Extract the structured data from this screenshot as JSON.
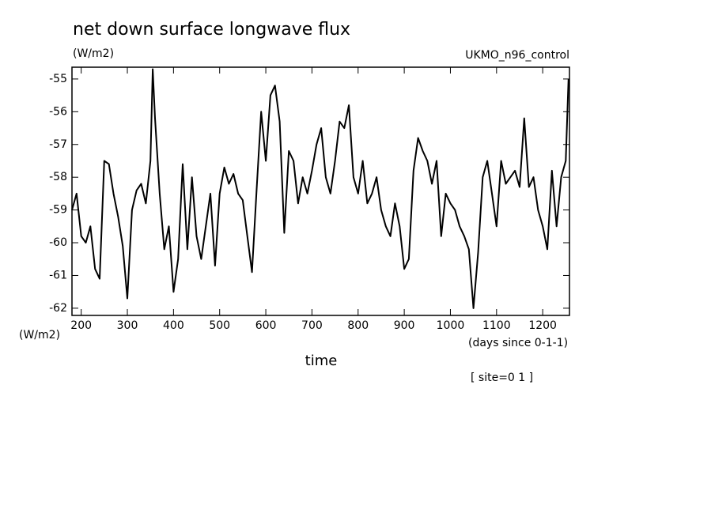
{
  "chart_data": {
    "type": "line",
    "title": "net down surface longwave flux",
    "y_units": "(W/m2)",
    "source": "UKMO_n96_control",
    "y_axis_label": "(W/m2)",
    "x_units": "(days since 0-1-1)",
    "x_axis_label": "time",
    "site": "[ site=0 1 ]",
    "xlim": [
      180,
      1258
    ],
    "ylim": [
      -54.64,
      -62.22
    ],
    "xticks": [
      200,
      300,
      400,
      500,
      600,
      700,
      800,
      900,
      1000,
      1100,
      1200
    ],
    "yticks": [
      -55,
      -56,
      -57,
      -58,
      -59,
      -60,
      -61,
      -62
    ],
    "x": [
      180,
      190,
      200,
      210,
      220,
      230,
      240,
      250,
      260,
      270,
      280,
      290,
      300,
      310,
      320,
      330,
      340,
      350,
      355,
      360,
      370,
      380,
      390,
      400,
      410,
      420,
      430,
      440,
      450,
      460,
      470,
      480,
      490,
      500,
      510,
      520,
      530,
      540,
      550,
      560,
      570,
      580,
      590,
      600,
      610,
      620,
      630,
      640,
      650,
      660,
      670,
      680,
      690,
      700,
      710,
      720,
      730,
      740,
      750,
      760,
      770,
      780,
      790,
      800,
      810,
      820,
      830,
      840,
      850,
      860,
      870,
      880,
      890,
      900,
      910,
      920,
      930,
      940,
      950,
      960,
      970,
      980,
      990,
      1000,
      1010,
      1020,
      1030,
      1040,
      1050,
      1060,
      1070,
      1080,
      1090,
      1100,
      1110,
      1120,
      1130,
      1140,
      1150,
      1160,
      1170,
      1180,
      1190,
      1200,
      1210,
      1220,
      1230,
      1240,
      1250,
      1256
    ],
    "series": [
      {
        "color": "#000000",
        "values": [
          -59.0,
          -58.5,
          -59.8,
          -60.0,
          -59.5,
          -60.8,
          -61.1,
          -57.5,
          -57.6,
          -58.5,
          -59.2,
          -60.1,
          -61.7,
          -59.0,
          -58.4,
          -58.2,
          -58.8,
          -57.5,
          -54.7,
          -56.2,
          -58.5,
          -60.2,
          -59.5,
          -61.5,
          -60.5,
          -57.6,
          -60.2,
          -58.0,
          -59.8,
          -60.5,
          -59.5,
          -58.5,
          -60.7,
          -58.5,
          -57.7,
          -58.2,
          -57.9,
          -58.5,
          -58.7,
          -59.8,
          -60.9,
          -58.4,
          -56.0,
          -57.5,
          -55.5,
          -55.2,
          -56.3,
          -59.7,
          -57.2,
          -57.5,
          -58.8,
          -58.0,
          -58.5,
          -57.8,
          -57.0,
          -56.5,
          -58.0,
          -58.5,
          -57.5,
          -56.3,
          -56.5,
          -55.8,
          -58.0,
          -58.5,
          -57.5,
          -58.8,
          -58.5,
          -58.0,
          -59.0,
          -59.5,
          -59.8,
          -58.8,
          -59.5,
          -60.8,
          -60.5,
          -57.8,
          -56.8,
          -57.2,
          -57.5,
          -58.2,
          -57.5,
          -59.8,
          -58.5,
          -58.8,
          -59.0,
          -59.5,
          -59.8,
          -60.2,
          -62.0,
          -60.3,
          -58.0,
          -57.5,
          -58.5,
          -59.5,
          -57.5,
          -58.2,
          -58.0,
          -57.8,
          -58.3,
          -56.2,
          -58.3,
          -58.0,
          -59.0,
          -59.5,
          -60.2,
          -57.8,
          -59.5,
          -58.0,
          -57.5,
          -55.0
        ]
      }
    ]
  }
}
